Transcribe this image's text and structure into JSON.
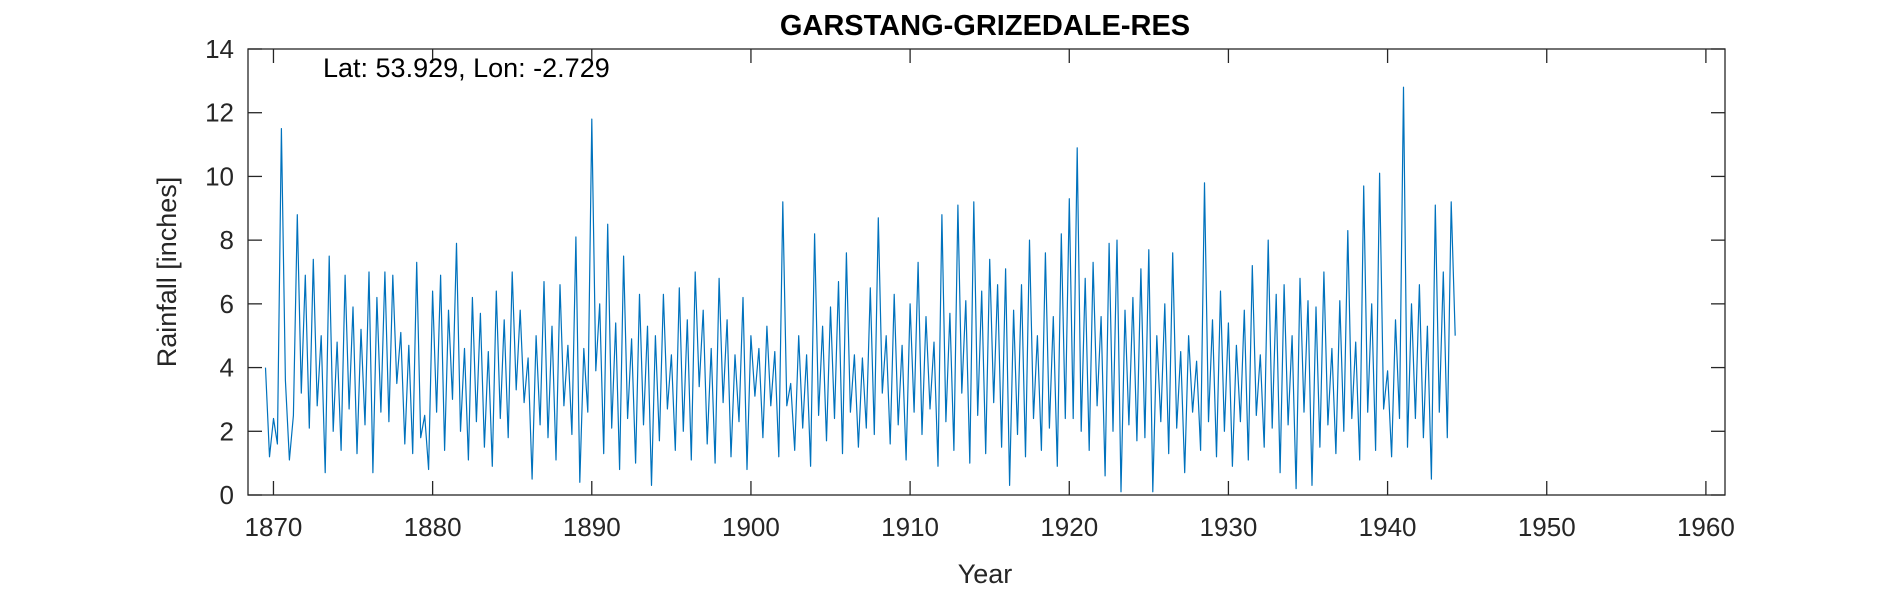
{
  "chart_data": {
    "type": "line",
    "title": "GARSTANG-GRIZEDALE-RES",
    "xlabel": "Year",
    "ylabel": "Rainfall [inches]",
    "annotation": "Lat: 53.929, Lon: -2.729",
    "xlim": [
      1868.4,
      1961.2
    ],
    "ylim": [
      0,
      14
    ],
    "xticks": [
      1870,
      1880,
      1890,
      1900,
      1910,
      1920,
      1930,
      1940,
      1950,
      1960
    ],
    "yticks": [
      0,
      2,
      4,
      6,
      8,
      10,
      12,
      14
    ],
    "grid": false,
    "line_color": "#0072BD",
    "series": [
      {
        "name": "",
        "x_start": 1869.5,
        "x_step": 0.25,
        "values": [
          4.0,
          1.2,
          2.4,
          1.6,
          11.5,
          3.6,
          1.1,
          2.5,
          8.8,
          3.2,
          6.9,
          2.1,
          7.4,
          2.8,
          5.0,
          0.7,
          7.5,
          2.0,
          4.8,
          1.4,
          6.9,
          2.7,
          5.9,
          1.3,
          5.2,
          2.2,
          7.0,
          0.7,
          6.2,
          2.6,
          7.0,
          2.3,
          6.9,
          3.5,
          5.1,
          1.6,
          4.7,
          1.3,
          7.3,
          1.8,
          2.5,
          0.8,
          6.4,
          2.6,
          6.9,
          1.4,
          5.8,
          3.0,
          7.9,
          2.0,
          4.6,
          1.1,
          6.2,
          2.3,
          5.7,
          1.5,
          4.5,
          0.9,
          6.4,
          2.4,
          5.5,
          1.8,
          7.0,
          3.3,
          5.8,
          2.9,
          4.3,
          0.5,
          5.0,
          2.2,
          6.7,
          1.8,
          5.3,
          1.1,
          6.6,
          2.8,
          4.7,
          1.9,
          8.1,
          0.4,
          4.6,
          2.6,
          11.8,
          3.9,
          6.0,
          1.3,
          8.5,
          2.1,
          5.4,
          0.8,
          7.5,
          2.4,
          4.9,
          1.0,
          6.3,
          2.2,
          5.3,
          0.3,
          5.0,
          1.7,
          6.3,
          2.7,
          4.4,
          1.4,
          6.5,
          2.0,
          5.5,
          1.1,
          7.0,
          3.4,
          5.8,
          1.6,
          4.6,
          1.0,
          6.8,
          2.9,
          5.5,
          1.2,
          4.4,
          2.3,
          6.2,
          0.8,
          5.0,
          3.1,
          4.6,
          1.8,
          5.3,
          2.8,
          4.5,
          1.2,
          9.2,
          2.8,
          3.5,
          1.4,
          5.0,
          2.1,
          4.4,
          0.9,
          8.2,
          2.5,
          5.3,
          1.7,
          5.9,
          2.4,
          6.7,
          1.3,
          7.6,
          2.6,
          4.4,
          1.5,
          4.3,
          2.1,
          6.5,
          1.9,
          8.7,
          3.2,
          5.0,
          1.6,
          6.3,
          2.2,
          4.7,
          1.1,
          6.0,
          2.6,
          7.3,
          1.9,
          5.6,
          2.7,
          4.8,
          0.9,
          8.8,
          2.3,
          5.7,
          1.4,
          9.1,
          3.2,
          6.1,
          1.0,
          9.2,
          2.5,
          6.4,
          1.3,
          7.4,
          2.9,
          6.6,
          1.5,
          7.1,
          0.3,
          5.8,
          1.9,
          6.6,
          1.2,
          8.0,
          2.4,
          5.0,
          1.4,
          7.6,
          2.1,
          5.6,
          0.9,
          8.2,
          2.4,
          9.3,
          2.4,
          10.9,
          2.0,
          6.8,
          1.4,
          7.3,
          2.8,
          5.6,
          0.6,
          7.9,
          2.0,
          8.0,
          0.1,
          5.8,
          2.2,
          6.2,
          1.7,
          7.1,
          1.8,
          7.7,
          0.1,
          5.0,
          2.3,
          6.0,
          1.3,
          7.6,
          2.1,
          4.5,
          0.7,
          5.0,
          2.6,
          4.2,
          1.4,
          9.8,
          2.3,
          5.5,
          1.2,
          6.4,
          2.0,
          5.4,
          0.9,
          4.7,
          2.3,
          5.8,
          1.1,
          7.2,
          2.5,
          4.4,
          1.5,
          8.0,
          2.1,
          6.3,
          0.7,
          6.6,
          2.2,
          5.0,
          0.2,
          6.8,
          2.6,
          6.1,
          0.3,
          5.9,
          1.5,
          7.0,
          2.2,
          4.6,
          1.3,
          6.1,
          2.0,
          8.3,
          2.4,
          4.8,
          1.1,
          9.7,
          2.6,
          6.0,
          1.4,
          10.1,
          2.7,
          3.9,
          1.2,
          5.5,
          2.4,
          12.8,
          1.5,
          6.0,
          2.4,
          6.6,
          1.8,
          5.3,
          0.5,
          9.1,
          2.6,
          7.0,
          1.8,
          9.2,
          5.0
        ]
      }
    ]
  }
}
